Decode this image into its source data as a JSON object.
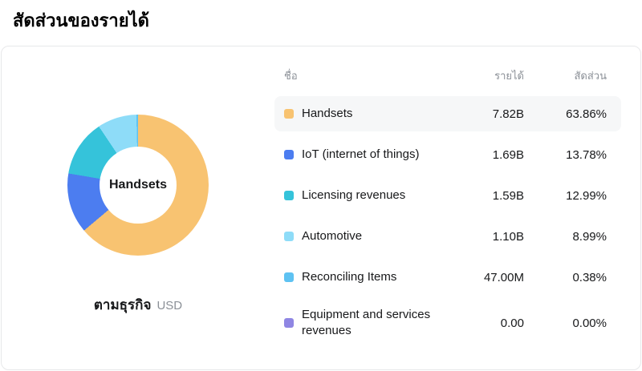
{
  "page": {
    "title": "สัดส่วนของรายได้"
  },
  "card": {
    "center_label": "Handsets",
    "footer_label": "ตามธุรกิจ",
    "footer_unit": "USD"
  },
  "table": {
    "headers": {
      "name": "ชื่อ",
      "revenue": "รายได้",
      "share": "สัดส่วน"
    },
    "rows": [
      {
        "label": "Handsets",
        "revenue": "7.82B",
        "share": "63.86%",
        "color": "#f8c371"
      },
      {
        "label": "IoT (internet of things)",
        "revenue": "1.69B",
        "share": "13.78%",
        "color": "#4c7df0"
      },
      {
        "label": "Licensing revenues",
        "revenue": "1.59B",
        "share": "12.99%",
        "color": "#35c3da"
      },
      {
        "label": "Automotive",
        "revenue": "1.10B",
        "share": "8.99%",
        "color": "#8edcf8"
      },
      {
        "label": "Reconciling Items",
        "revenue": "47.00M",
        "share": "0.38%",
        "color": "#5ec2f2"
      },
      {
        "label": "Equipment and services revenues",
        "revenue": "0.00",
        "share": "0.00%",
        "color": "#8f86e3"
      }
    ]
  },
  "chart_data": {
    "type": "pie",
    "title": "สัดส่วนของรายได้",
    "subtitle": "ตามธุรกิจ",
    "unit": "USD",
    "center_label": "Handsets",
    "legend_position": "right",
    "donut": true,
    "categories": [
      "Handsets",
      "IoT (internet of things)",
      "Licensing revenues",
      "Automotive",
      "Reconciling Items",
      "Equipment and services revenues"
    ],
    "values": [
      7820000000,
      1690000000,
      1590000000,
      1100000000,
      47000000,
      0
    ],
    "values_display": [
      "7.82B",
      "1.69B",
      "1.59B",
      "1.10B",
      "47.00M",
      "0.00"
    ],
    "percentages": [
      63.86,
      13.78,
      12.99,
      8.99,
      0.38,
      0.0
    ],
    "colors": [
      "#f8c371",
      "#4c7df0",
      "#35c3da",
      "#8edcf8",
      "#5ec2f2",
      "#8f86e3"
    ]
  }
}
